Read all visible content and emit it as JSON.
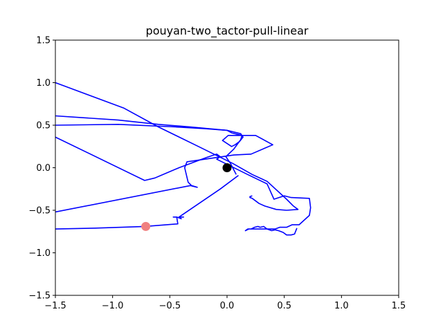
{
  "chart_data": {
    "type": "line",
    "title": "pouyan-two_tactor-pull-linear",
    "xlabel": "",
    "ylabel": "",
    "xlim": [
      -1.5,
      1.5
    ],
    "ylim": [
      -1.5,
      1.5
    ],
    "xticks": [
      -1.5,
      -1.0,
      -0.5,
      0.0,
      0.5,
      1.0,
      1.5
    ],
    "yticks": [
      -1.5,
      -1.0,
      -0.5,
      0.0,
      0.5,
      1.0,
      1.5
    ],
    "xtick_labels": [
      "−1.5",
      "−1.0",
      "−0.5",
      "0.0",
      "0.5",
      "1.0",
      "1.5"
    ],
    "ytick_labels": [
      "−1.5",
      "−1.0",
      "−0.5",
      "0.0",
      "0.5",
      "1.0",
      "1.5"
    ],
    "grid": false,
    "series": [
      {
        "color": "#0000ff",
        "points": [
          [
            0.61,
            -0.71
          ],
          [
            0.59,
            -0.78
          ],
          [
            0.56,
            -0.79
          ],
          [
            0.52,
            -0.79
          ],
          [
            0.49,
            -0.76
          ],
          [
            0.45,
            -0.74
          ],
          [
            0.42,
            -0.73
          ],
          [
            0.39,
            -0.74
          ],
          [
            0.35,
            -0.72
          ],
          [
            0.32,
            -0.69
          ],
          [
            0.29,
            -0.7
          ],
          [
            0.27,
            -0.69
          ],
          [
            0.24,
            -0.7
          ],
          [
            0.21,
            -0.72
          ],
          [
            0.19,
            -0.72
          ],
          [
            0.16,
            -0.74
          ],
          [
            0.18,
            -0.72
          ],
          [
            0.42,
            -0.72
          ],
          [
            0.46,
            -0.7
          ],
          [
            0.52,
            -0.7
          ],
          [
            0.57,
            -0.67
          ],
          [
            0.63,
            -0.67
          ],
          [
            0.72,
            -0.56
          ],
          [
            0.73,
            -0.47
          ],
          [
            0.72,
            -0.36
          ],
          [
            0.56,
            -0.35
          ],
          [
            0.5,
            -0.33
          ],
          [
            0.41,
            -0.37
          ],
          [
            0.35,
            -0.19
          ],
          [
            0.18,
            -0.08
          ],
          [
            -0.09,
            0.1
          ],
          [
            -0.06,
            0.13
          ],
          [
            -0.09,
            0.16
          ],
          [
            -0.18,
            0.12
          ],
          [
            -0.42,
            0.0
          ],
          [
            -0.63,
            -0.12
          ],
          [
            -0.72,
            -0.15
          ],
          [
            -1.5,
            0.36
          ]
        ]
      },
      {
        "color": "#0000ff",
        "points": [
          [
            -1.5,
            0.61
          ],
          [
            -1.28,
            0.59
          ],
          [
            -0.95,
            0.56
          ],
          [
            -0.6,
            0.51
          ],
          [
            -0.32,
            0.48
          ],
          [
            0.0,
            0.44
          ],
          [
            0.12,
            0.4
          ],
          [
            0.14,
            0.36
          ],
          [
            0.11,
            0.31
          ],
          [
            0.07,
            0.27
          ],
          [
            0.04,
            0.25
          ],
          [
            -0.04,
            0.32
          ],
          [
            0.01,
            0.38
          ],
          [
            0.06,
            0.38
          ],
          [
            0.13,
            0.38
          ],
          [
            0.21,
            0.38
          ],
          [
            0.25,
            0.38
          ],
          [
            0.4,
            0.27
          ],
          [
            0.21,
            0.16
          ],
          [
            0.06,
            0.15
          ],
          [
            -0.35,
            0.07
          ],
          [
            -0.37,
            0.0
          ],
          [
            -0.34,
            -0.17
          ],
          [
            -0.31,
            -0.21
          ],
          [
            -0.26,
            -0.23
          ],
          [
            -0.32,
            -0.21
          ],
          [
            -1.5,
            -0.52
          ]
        ]
      },
      {
        "color": "#0000ff",
        "points": [
          [
            -1.5,
            1.0
          ],
          [
            -0.9,
            0.7
          ],
          [
            -0.6,
            0.48
          ],
          [
            -0.25,
            0.25
          ],
          [
            0.05,
            0.05
          ],
          [
            0.22,
            -0.08
          ],
          [
            0.35,
            -0.16
          ],
          [
            0.52,
            -0.37
          ],
          [
            0.58,
            -0.45
          ],
          [
            0.62,
            -0.49
          ],
          [
            0.52,
            -0.5
          ],
          [
            0.43,
            -0.49
          ],
          [
            0.33,
            -0.45
          ],
          [
            0.28,
            -0.42
          ],
          [
            0.22,
            -0.36
          ],
          [
            0.2,
            -0.35
          ],
          [
            0.2,
            -0.34
          ],
          [
            0.22,
            -0.33
          ]
        ]
      },
      {
        "color": "#0000ff",
        "points": [
          [
            -1.5,
            0.5
          ],
          [
            -0.95,
            0.51
          ],
          [
            -0.45,
            0.48
          ],
          [
            -0.2,
            0.46
          ],
          [
            0.0,
            0.44
          ],
          [
            0.04,
            0.41
          ],
          [
            0.13,
            0.38
          ],
          [
            0.12,
            0.33
          ],
          [
            0.06,
            0.22
          ],
          [
            -0.01,
            0.13
          ],
          [
            0.03,
            0.05
          ],
          [
            0.08,
            -0.08
          ]
        ]
      },
      {
        "color": "#0000ff",
        "points": [
          [
            -1.5,
            -0.72
          ],
          [
            -1.15,
            -0.71
          ],
          [
            -0.72,
            -0.69
          ],
          [
            -0.43,
            -0.66
          ],
          [
            -0.44,
            -0.58
          ],
          [
            -0.47,
            -0.58
          ],
          [
            -0.44,
            -0.58
          ],
          [
            -0.4,
            -0.6
          ],
          [
            -0.42,
            -0.58
          ],
          [
            -0.38,
            -0.58
          ],
          [
            -0.42,
            -0.58
          ],
          [
            -0.06,
            -0.25
          ],
          [
            0.1,
            -0.09
          ]
        ]
      }
    ],
    "markers": [
      {
        "x": 0.0,
        "y": 0.0,
        "color": "#000000",
        "role": "center"
      },
      {
        "x": -0.71,
        "y": -0.69,
        "color": "#f08080",
        "role": "highlight"
      }
    ]
  }
}
